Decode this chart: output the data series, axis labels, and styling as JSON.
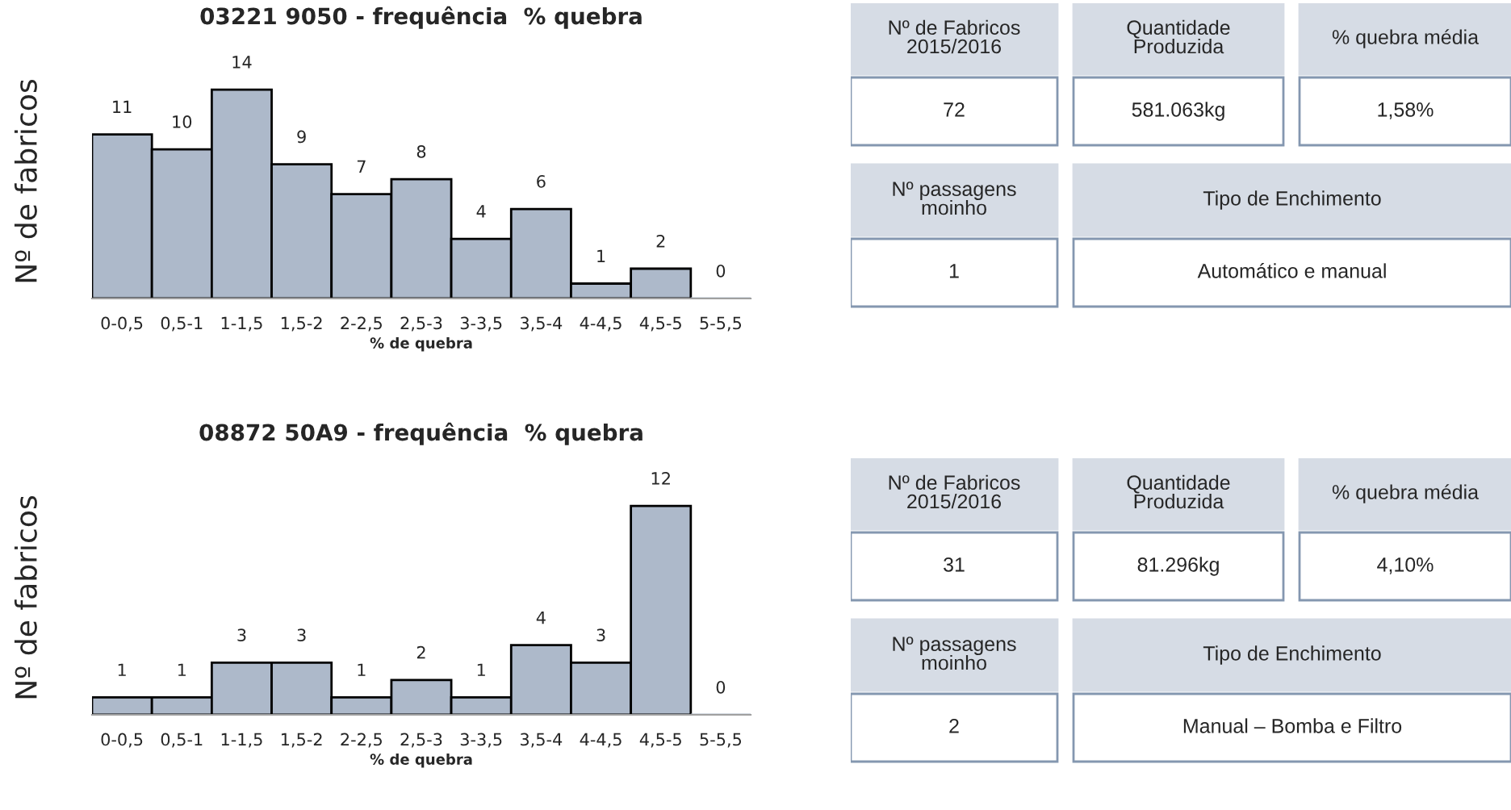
{
  "chart_data": [
    {
      "type": "bar",
      "title": "03221 9050 - frequência  % quebra",
      "xlabel": "% de quebra",
      "ylabel": "Nº de fabricos",
      "categories": [
        "0-0,5",
        "0,5-1",
        "1-1,5",
        "1,5-2",
        "2-2,5",
        "2,5-3",
        "3-3,5",
        "3,5-4",
        "4-4,5",
        "4,5-5",
        "5-5,5"
      ],
      "values": [
        11,
        10,
        14,
        9,
        7,
        8,
        4,
        6,
        1,
        2,
        0
      ],
      "color": "#adb9ca",
      "data_labels": true
    },
    {
      "type": "other",
      "annotations": [
        "Nº de Fabricos\n2015/2016",
        "Quantidade\nProduzida",
        "% quebra média",
        "72",
        "581.063kg",
        "1,58%",
        "Nº passagens\nmoinho",
        "Tipo de Enchimento",
        "1",
        "Automático e manual"
      ]
    },
    {
      "type": "bar",
      "title": "08872 50A9 - frequência  % quebra",
      "xlabel": "% de quebra",
      "ylabel": "Nº de fabricos",
      "categories": [
        "0-0,5",
        "0,5-1",
        "1-1,5",
        "1,5-2",
        "2-2,5",
        "2,5-3",
        "3-3,5",
        "3,5-4",
        "4-4,5",
        "4,5-5",
        "5-5,5"
      ],
      "values": [
        1,
        1,
        3,
        3,
        1,
        2,
        1,
        4,
        3,
        12,
        0
      ],
      "color": "#adb9ca",
      "data_labels": true
    },
    {
      "type": "other",
      "annotations": [
        "Nº de Fabricos\n2015/2016",
        "Quantidade\nProduzida",
        "% quebra média",
        "31",
        "81.296kg",
        "4,10%",
        "Nº passagens\nmoinho",
        "Tipo de Enchimento",
        "2",
        "Manual – Bomba e Filtro"
      ]
    }
  ]
}
